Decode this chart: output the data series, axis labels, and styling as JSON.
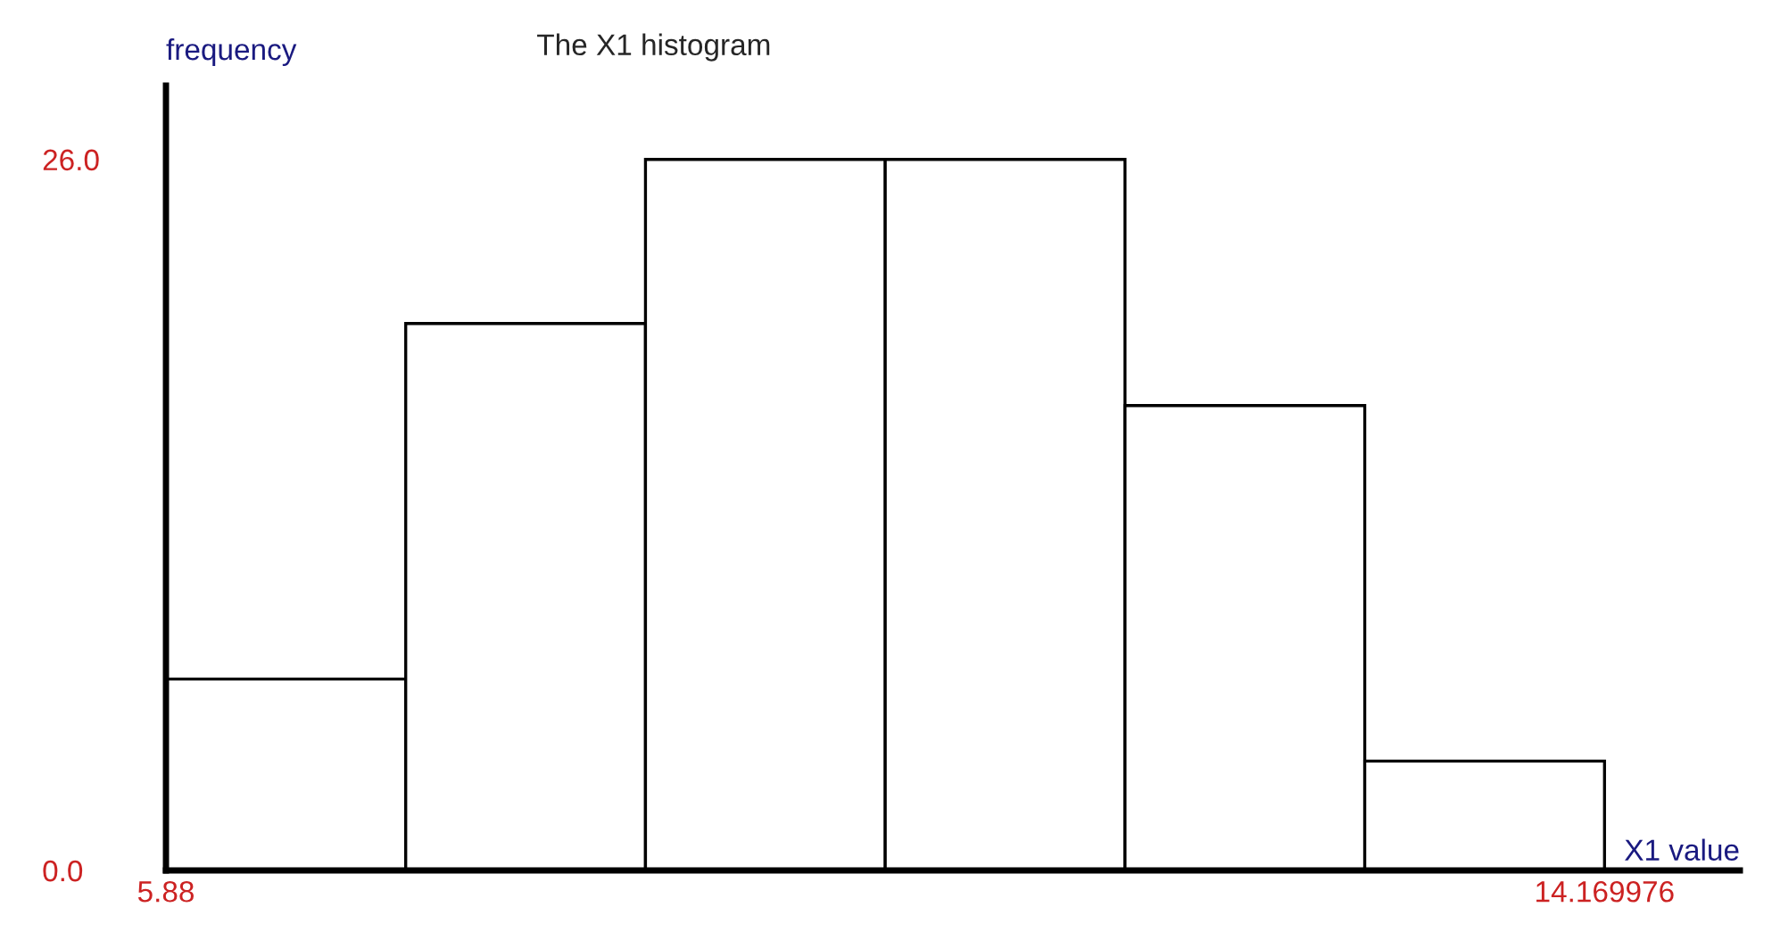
{
  "chart_data": {
    "type": "histogram",
    "title": "The X1 histogram",
    "xlabel": "X1 value",
    "ylabel": "frequency",
    "bins": [
      5.88,
      7.261663,
      8.643325,
      10.024988,
      11.40665,
      12.788313,
      14.169976
    ],
    "values": [
      7,
      20,
      26,
      26,
      17,
      4
    ],
    "color": "#ffffff",
    "xlim": [
      5.88,
      14.95
    ],
    "ylim": [
      0,
      28.7
    ],
    "xticks": [
      5.88,
      14.169976
    ],
    "yticks": [
      {
        "value": 0,
        "label": "0.0"
      },
      {
        "value": 26,
        "label": "26.0"
      }
    ],
    "grid": false
  }
}
